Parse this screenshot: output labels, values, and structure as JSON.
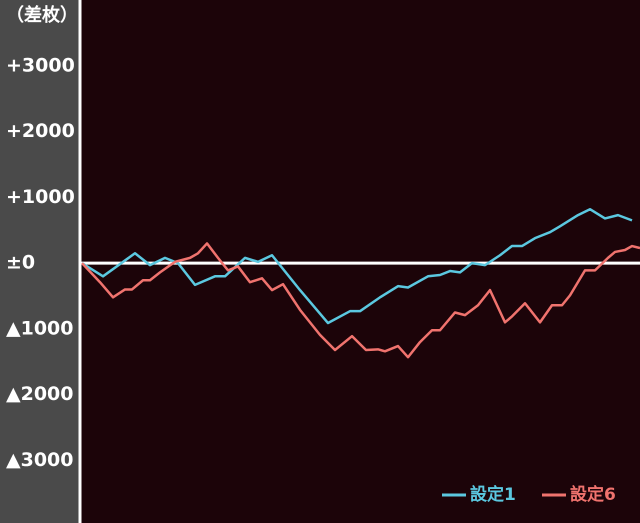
{
  "chart_data": {
    "type": "line",
    "y_label": "（差枚）",
    "xlim": [
      0,
      558
    ],
    "ylim": [
      -3950,
      4000
    ],
    "yticks": [
      {
        "value": 3000,
        "label": "+3000"
      },
      {
        "value": 2000,
        "label": "+2000"
      },
      {
        "value": 1000,
        "label": "+1000"
      },
      {
        "value": 0,
        "label": "±0"
      },
      {
        "value": -1000,
        "label": "▲1000"
      },
      {
        "value": -2000,
        "label": "▲2000"
      },
      {
        "value": -3000,
        "label": "▲3000"
      }
    ],
    "legend": "bottom-right",
    "series": [
      {
        "name": "設定1",
        "color": "#5bc8e0",
        "x": [
          0,
          21,
          53,
          68,
          83,
          96,
          113,
          133,
          143,
          163,
          176,
          190,
          218,
          246,
          268,
          278,
          298,
          316,
          326,
          346,
          358,
          368,
          378,
          390,
          403,
          418,
          430,
          440,
          453,
          468,
          478,
          496,
          508,
          523,
          536,
          550
        ],
        "values": [
          0,
          -200,
          150,
          -30,
          80,
          0,
          -330,
          -200,
          -200,
          80,
          20,
          120,
          -410,
          -910,
          -730,
          -730,
          -520,
          -350,
          -370,
          -200,
          -180,
          -120,
          -140,
          0,
          -30,
          120,
          260,
          260,
          380,
          470,
          560,
          730,
          820,
          680,
          730,
          650
        ]
      },
      {
        "name": "設定6",
        "color": "#f0736e",
        "x": [
          0,
          18,
          31,
          43,
          50,
          61,
          68,
          78,
          93,
          108,
          116,
          125,
          136,
          146,
          156,
          168,
          180,
          190,
          201,
          218,
          238,
          253,
          270,
          284,
          296,
          303,
          316,
          326,
          338,
          350,
          358,
          373,
          383,
          396,
          408,
          423,
          430,
          443,
          458,
          470,
          480,
          488,
          503,
          513,
          526,
          533,
          543,
          550,
          558
        ],
        "values": [
          0,
          -290,
          -520,
          -400,
          -400,
          -260,
          -260,
          -140,
          20,
          80,
          150,
          300,
          80,
          -110,
          -50,
          -290,
          -230,
          -410,
          -320,
          -710,
          -1090,
          -1320,
          -1110,
          -1320,
          -1310,
          -1340,
          -1260,
          -1430,
          -1200,
          -1020,
          -1020,
          -750,
          -790,
          -640,
          -410,
          -900,
          -810,
          -610,
          -900,
          -640,
          -640,
          -490,
          -110,
          -110,
          80,
          170,
          200,
          260,
          230
        ]
      }
    ]
  }
}
